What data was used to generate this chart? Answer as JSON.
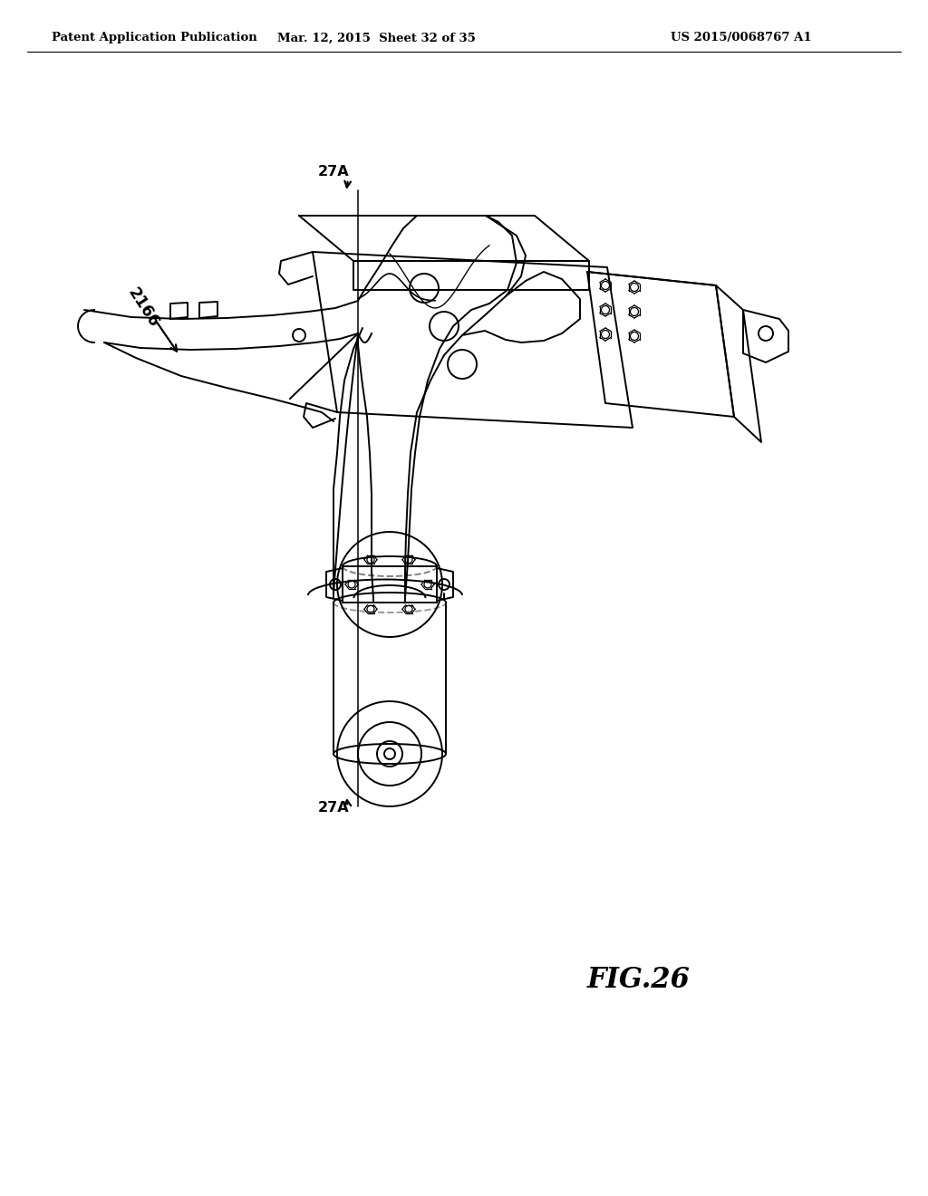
{
  "bg_color": "#ffffff",
  "header_left": "Patent Application Publication",
  "header_center": "Mar. 12, 2015  Sheet 32 of 35",
  "header_right": "US 2015/0068767 A1",
  "fig_label": "FIG.26",
  "ref_2166": "2166",
  "ref_27A_top": "27A",
  "ref_27A_bot": "27A",
  "lc": "#000000",
  "lw": 1.4
}
